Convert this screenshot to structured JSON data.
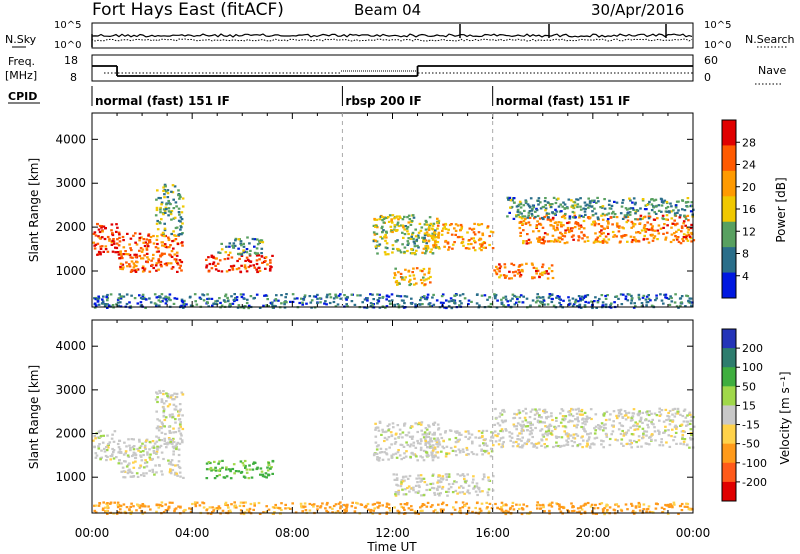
{
  "header": {
    "station": "Fort Hays East (fitACF)",
    "beam": "Beam 04",
    "date": "30/Apr/2016"
  },
  "noise_panel": {
    "left_label": "N.Sky",
    "right_label": "N.Search",
    "y_ticks": [
      "10^5",
      "10^0"
    ]
  },
  "freq_panel": {
    "left_label_1": "Freq.",
    "left_label_2": "[MHz]",
    "left_ticks": [
      "18",
      "8"
    ],
    "right_ticks": [
      "60",
      "0"
    ],
    "right_label": "Nave",
    "freq_steps": [
      {
        "start_h": 0.0,
        "end_h": 1.0,
        "mhz": 15.5
      },
      {
        "start_h": 1.0,
        "end_h": 13.0,
        "mhz": 10.5
      },
      {
        "start_h": 13.0,
        "end_h": 24.0,
        "mhz": 15.5
      }
    ]
  },
  "cpid_panel": {
    "label": "CPID",
    "segments": [
      {
        "start_h": 0,
        "end_h": 10,
        "name": "normal (fast) 151 IF"
      },
      {
        "start_h": 10,
        "end_h": 16,
        "name": "rbsp 200 IF"
      },
      {
        "start_h": 16,
        "end_h": 24,
        "name": "normal (fast) 151 IF"
      }
    ]
  },
  "power_colorbar": {
    "title": "Power [dB]",
    "ticks": [
      "28",
      "24",
      "20",
      "16",
      "12",
      "8",
      "4"
    ],
    "colors": [
      "#e00000",
      "#ff5a00",
      "#ff9a00",
      "#f0c800",
      "#58a060",
      "#2a6e8a",
      "#0018e0"
    ]
  },
  "velocity_colorbar": {
    "title": "Velocity [m s⁻¹]",
    "ticks": [
      "200",
      "100",
      "50",
      "15",
      "-15",
      "-50",
      "-100",
      "-200"
    ],
    "colors": [
      "#2434b8",
      "#2e7d6e",
      "#3fae3f",
      "#a0d84a",
      "#c8c8c8",
      "#ffd24a",
      "#ff9a1a",
      "#ff5a1a",
      "#e00000"
    ]
  },
  "chart_data": [
    {
      "type": "heatmap",
      "title": "Power",
      "ylabel": "Slant Range [km]",
      "xlabel": "Time UT",
      "xlim_hours": [
        0,
        24
      ],
      "ylim_km": [
        180,
        4600
      ],
      "y_ticks": [
        1000,
        2000,
        3000,
        4000
      ],
      "x_tick_labels": [
        "00:00",
        "04:00",
        "08:00",
        "12:00",
        "16:00",
        "20:00",
        "00:00"
      ],
      "scatter_regions": [
        {
          "t0": 0.0,
          "t1": 1.0,
          "r0": 1380,
          "r1": 2100,
          "value_db": 26
        },
        {
          "t0": 1.0,
          "t1": 3.6,
          "r0": 1000,
          "r1": 1900,
          "value_db": 24
        },
        {
          "t0": 2.5,
          "t1": 3.6,
          "r0": 1800,
          "r1": 3000,
          "value_db": 12
        },
        {
          "t0": 4.5,
          "t1": 7.2,
          "r0": 1000,
          "r1": 1400,
          "value_db": 26
        },
        {
          "t0": 5.0,
          "t1": 6.8,
          "r0": 1400,
          "r1": 1800,
          "value_db": 10
        },
        {
          "t0": 11.2,
          "t1": 13.8,
          "r0": 1400,
          "r1": 2300,
          "value_db": 14
        },
        {
          "t0": 12.0,
          "t1": 13.5,
          "r0": 700,
          "r1": 1100,
          "value_db": 18
        },
        {
          "t0": 13.2,
          "t1": 16.0,
          "r0": 1500,
          "r1": 2100,
          "value_db": 20
        },
        {
          "t0": 16.0,
          "t1": 18.5,
          "r0": 850,
          "r1": 1200,
          "value_db": 22
        },
        {
          "t0": 17.0,
          "t1": 24.0,
          "r0": 1650,
          "r1": 2300,
          "value_db": 22
        },
        {
          "t0": 16.5,
          "t1": 24.0,
          "r0": 2200,
          "r1": 2700,
          "value_db": 10
        },
        {
          "t0": 0.0,
          "t1": 24.0,
          "r0": 180,
          "r1": 500,
          "value_db": 8
        }
      ]
    },
    {
      "type": "heatmap",
      "title": "Velocity",
      "ylabel": "Slant Range [km]",
      "xlabel": "Time UT",
      "xlim_hours": [
        0,
        24
      ],
      "ylim_km": [
        180,
        4600
      ],
      "y_ticks": [
        1000,
        2000,
        3000,
        4000
      ],
      "x_tick_labels": [
        "00:00",
        "04:00",
        "08:00",
        "12:00",
        "16:00",
        "20:00",
        "00:00"
      ],
      "scatter_regions": [
        {
          "t0": 0.0,
          "t1": 1.0,
          "r0": 1380,
          "r1": 2100,
          "value_ms": 0
        },
        {
          "t0": 1.0,
          "t1": 3.6,
          "r0": 1000,
          "r1": 1900,
          "value_ms": 0
        },
        {
          "t0": 2.5,
          "t1": 3.6,
          "r0": 1800,
          "r1": 3000,
          "value_ms": 0
        },
        {
          "t0": 4.5,
          "t1": 7.2,
          "r0": 1000,
          "r1": 1400,
          "value_ms": 40
        },
        {
          "t0": 11.2,
          "t1": 13.8,
          "r0": 1400,
          "r1": 2300,
          "value_ms": 0
        },
        {
          "t0": 12.0,
          "t1": 16.0,
          "r0": 600,
          "r1": 1100,
          "value_ms": 0
        },
        {
          "t0": 13.2,
          "t1": 16.0,
          "r0": 1500,
          "r1": 2100,
          "value_ms": 0
        },
        {
          "t0": 16.0,
          "t1": 24.0,
          "r0": 1700,
          "r1": 2600,
          "value_ms": 0
        },
        {
          "t0": 0.0,
          "t1": 24.0,
          "r0": 180,
          "r1": 450,
          "value_ms": -40
        }
      ]
    }
  ]
}
